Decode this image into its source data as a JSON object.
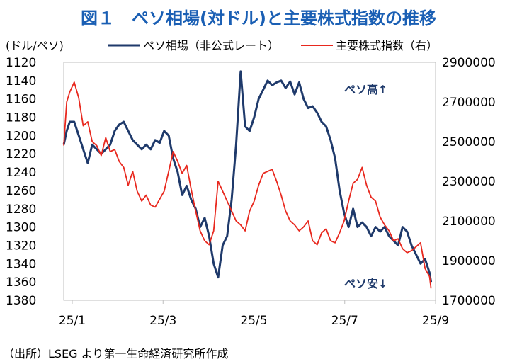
{
  "chart_data": {
    "type": "line",
    "title": "図１　ペソ相場(対ドル)と主要株式指数の推移",
    "left_axis_label": "(ドル/ペソ)",
    "left_axis_inverted": true,
    "left_ylim": [
      1120,
      1380
    ],
    "left_ticks": [
      "1120",
      "1140",
      "1160",
      "1180",
      "1200",
      "1220",
      "1240",
      "1260",
      "1280",
      "1300",
      "1320",
      "1340",
      "1360",
      "1380"
    ],
    "right_ylim": [
      1700000,
      2900000
    ],
    "right_ticks": [
      "2900000",
      "2700000",
      "2500000",
      "2300000",
      "2100000",
      "1900000",
      "1700000"
    ],
    "x_ticks": [
      "25/1",
      "25/3",
      "25/5",
      "25/7",
      "25/9"
    ],
    "grid": false,
    "legend_position": "top",
    "annotations": {
      "up": "ペソ高↑",
      "down": "ペソ安↓"
    },
    "series": [
      {
        "name": "ペソ相場（非公式レート）",
        "axis": "left",
        "color": "#1f3a6b",
        "x": [
          0,
          2,
          4,
          7,
          10,
          13,
          16,
          19,
          22,
          25,
          28,
          31,
          34,
          37,
          40,
          43,
          46,
          49,
          52,
          55,
          58,
          61,
          64,
          67,
          70,
          73,
          76,
          79,
          82,
          85,
          88,
          91,
          94,
          97,
          100,
          103,
          106,
          109,
          112,
          115,
          118,
          121,
          124,
          127,
          130,
          133,
          136,
          139,
          142,
          145,
          148,
          151,
          154,
          157,
          160,
          163,
          166,
          169,
          172,
          175,
          178,
          181,
          184,
          187,
          190,
          193,
          196,
          199,
          202,
          205,
          208,
          211,
          214,
          217,
          220,
          223,
          226,
          229,
          232,
          235,
          238,
          241,
          244,
          245
        ],
        "values": [
          1210,
          1195,
          1185,
          1185,
          1200,
          1215,
          1230,
          1210,
          1215,
          1220,
          1215,
          1210,
          1195,
          1188,
          1185,
          1195,
          1205,
          1210,
          1215,
          1210,
          1215,
          1205,
          1208,
          1195,
          1200,
          1225,
          1240,
          1265,
          1255,
          1270,
          1280,
          1300,
          1290,
          1310,
          1340,
          1355,
          1320,
          1310,
          1270,
          1210,
          1130,
          1190,
          1195,
          1180,
          1160,
          1150,
          1140,
          1145,
          1142,
          1140,
          1148,
          1141,
          1155,
          1142,
          1160,
          1170,
          1168,
          1175,
          1185,
          1190,
          1205,
          1225,
          1260,
          1285,
          1300,
          1280,
          1300,
          1295,
          1300,
          1310,
          1300,
          1305,
          1300,
          1310,
          1315,
          1320,
          1300,
          1305,
          1320,
          1330,
          1340,
          1335,
          1350,
          1360
        ]
      },
      {
        "name": "主要株式指数（右）",
        "axis": "right",
        "color": "#e8281e",
        "x": [
          0,
          2,
          4,
          7,
          10,
          13,
          16,
          19,
          22,
          25,
          28,
          31,
          34,
          37,
          40,
          43,
          46,
          49,
          52,
          55,
          58,
          61,
          64,
          67,
          70,
          73,
          76,
          79,
          82,
          85,
          88,
          91,
          94,
          97,
          100,
          103,
          106,
          109,
          112,
          115,
          118,
          121,
          124,
          127,
          130,
          133,
          136,
          139,
          142,
          145,
          148,
          151,
          154,
          157,
          160,
          163,
          166,
          169,
          172,
          175,
          178,
          181,
          184,
          187,
          190,
          193,
          196,
          199,
          202,
          205,
          208,
          211,
          214,
          217,
          220,
          223,
          226,
          229,
          232,
          235,
          238,
          241,
          244,
          245
        ],
        "values": [
          2480000,
          2700000,
          2750000,
          2800000,
          2720000,
          2580000,
          2600000,
          2500000,
          2480000,
          2430000,
          2520000,
          2450000,
          2460000,
          2400000,
          2370000,
          2280000,
          2350000,
          2250000,
          2200000,
          2230000,
          2180000,
          2170000,
          2210000,
          2250000,
          2350000,
          2450000,
          2400000,
          2340000,
          2380000,
          2260000,
          2150000,
          2050000,
          2000000,
          1980000,
          2050000,
          2300000,
          2250000,
          2200000,
          2150000,
          2100000,
          2080000,
          2050000,
          2150000,
          2200000,
          2280000,
          2340000,
          2350000,
          2360000,
          2300000,
          2230000,
          2150000,
          2100000,
          2080000,
          2050000,
          2070000,
          2100000,
          2000000,
          1980000,
          2040000,
          2060000,
          2000000,
          1990000,
          2040000,
          2100000,
          2200000,
          2290000,
          2310000,
          2370000,
          2280000,
          2220000,
          2200000,
          2120000,
          2080000,
          2050000,
          2000000,
          2010000,
          1960000,
          1940000,
          1950000,
          1970000,
          1990000,
          1860000,
          1820000,
          1760000
        ]
      }
    ]
  },
  "source": "（出所）LSEG より第一生命経済研究所作成"
}
